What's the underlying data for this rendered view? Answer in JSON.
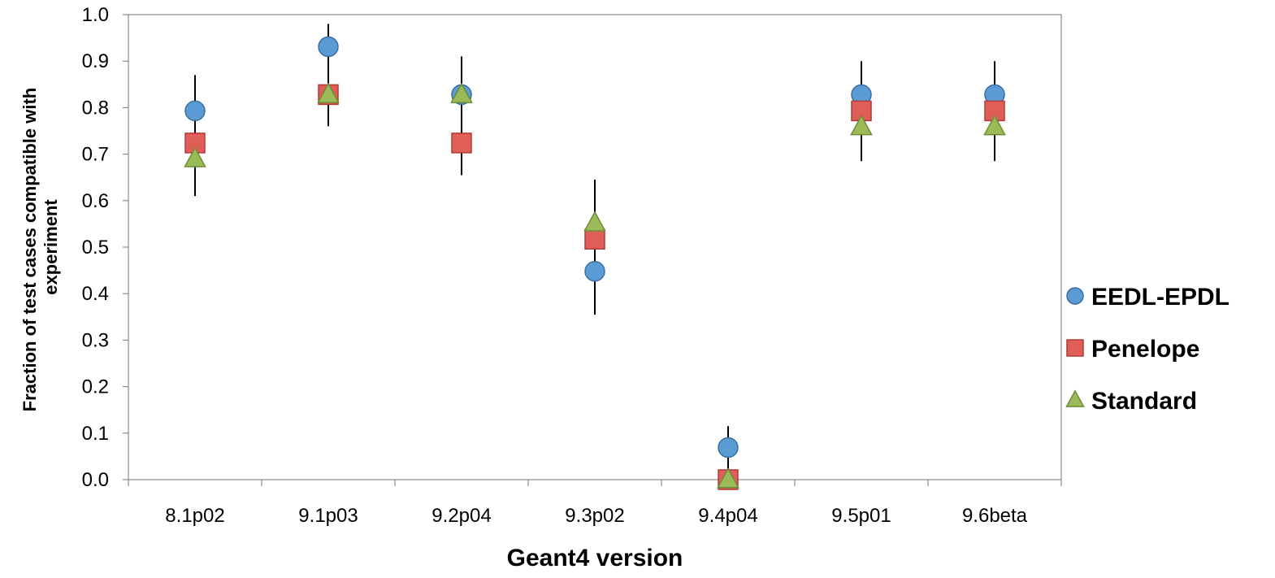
{
  "chart_data": {
    "type": "scatter",
    "title": "",
    "xlabel": "Geant4 version",
    "ylabel_lines": [
      "Fraction of test cases compatible with",
      "experiment"
    ],
    "categories": [
      "8.1p02",
      "9.1p03",
      "9.2p04",
      "9.3p02",
      "9.4p04",
      "9.5p01",
      "9.6beta"
    ],
    "ylim": [
      0,
      1.0
    ],
    "yticks": [
      "0.0",
      "0.1",
      "0.2",
      "0.3",
      "0.4",
      "0.5",
      "0.6",
      "0.7",
      "0.8",
      "0.9",
      "1.0"
    ],
    "grid": false,
    "legend_position": "right",
    "error_bars": [
      {
        "low": 0.61,
        "high": 0.87
      },
      {
        "low": 0.76,
        "high": 0.98
      },
      {
        "low": 0.655,
        "high": 0.91
      },
      {
        "low": 0.355,
        "high": 0.645
      },
      {
        "low": 0.0,
        "high": 0.115
      },
      {
        "low": 0.685,
        "high": 0.9
      },
      {
        "low": 0.685,
        "high": 0.9
      }
    ],
    "series": [
      {
        "name": "EEDL-EPDL",
        "marker": "circle",
        "color": "#5B9BD5",
        "stroke": "#3C6FA0",
        "values": [
          0.793,
          0.931,
          0.828,
          0.448,
          0.069,
          0.828,
          0.828
        ]
      },
      {
        "name": "Penelope",
        "marker": "square",
        "color": "#E05E58",
        "stroke": "#B23A35",
        "values": [
          0.724,
          0.828,
          0.724,
          0.517,
          0.0,
          0.793,
          0.793
        ]
      },
      {
        "name": "Standard",
        "marker": "triangle",
        "color": "#9BBB59",
        "stroke": "#6F8C35",
        "values": [
          0.69,
          0.828,
          0.828,
          0.552,
          0.0,
          0.759,
          0.759
        ]
      }
    ]
  }
}
